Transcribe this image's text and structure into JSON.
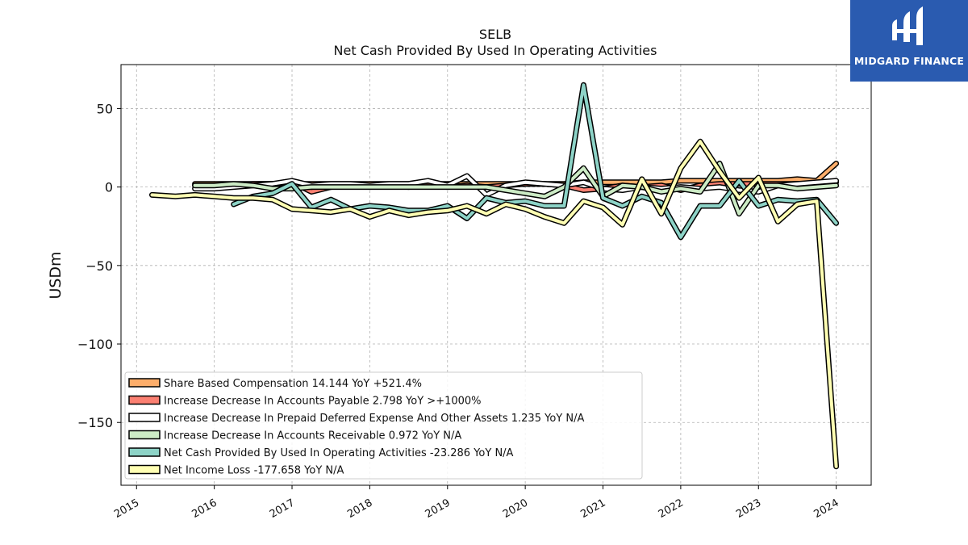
{
  "brand": {
    "name": "MIDGARD FINANCE",
    "bg_color": "#2a5bb0"
  },
  "chart_data": {
    "type": "line",
    "title": "SELB",
    "subtitle": "Net Cash Provided By Used In Operating Activities",
    "xlabel": "",
    "ylabel": "USDm",
    "x_tick_labels": [
      "2015",
      "2016",
      "2017",
      "2018",
      "2019",
      "2020",
      "2021",
      "2022",
      "2023",
      "2024"
    ],
    "y_ticks": [
      50,
      0,
      -50,
      -100,
      -150
    ],
    "y_tick_labels": [
      "50",
      "0",
      "−50",
      "−100",
      "−150"
    ],
    "xlim": [
      2014.8,
      2024.45
    ],
    "ylim": [
      -190,
      78
    ],
    "grid": true,
    "legend_position": "lower-left",
    "series": [
      {
        "name": "Share Based Compensation",
        "legend": "Share Based Compensation  14.144 YoY +521.4%",
        "color": "#fdae6b",
        "x": [
          2015.75,
          2016,
          2016.25,
          2016.5,
          2016.75,
          2017,
          2017.25,
          2017.5,
          2017.75,
          2018,
          2018.25,
          2018.5,
          2018.75,
          2019,
          2019.25,
          2019.5,
          2019.75,
          2020,
          2020.25,
          2020.5,
          2020.75,
          2021,
          2021.25,
          2021.5,
          2021.75,
          2022,
          2022.25,
          2022.5,
          2022.75,
          2023,
          2023.25,
          2023.5,
          2023.75,
          2024
        ],
        "values": [
          2,
          2,
          2,
          2,
          2,
          2,
          2,
          2,
          2,
          2,
          2,
          2,
          2,
          2,
          2,
          2,
          2,
          2,
          2,
          2,
          3,
          3,
          3,
          3,
          3,
          4,
          4,
          4,
          4,
          4,
          4,
          5,
          4,
          15
        ]
      },
      {
        "name": "Increase Decrease In Accounts Payable",
        "legend": "Increase Decrease In Accounts Payable  2.798 YoY >+1000%",
        "color": "#fb8072",
        "x": [
          2015.75,
          2016,
          2016.25,
          2016.5,
          2016.75,
          2017,
          2017.25,
          2017.5,
          2017.75,
          2018,
          2018.25,
          2018.5,
          2018.75,
          2019,
          2019.25,
          2019.5,
          2019.75,
          2020,
          2020.25,
          2020.5,
          2020.75,
          2021,
          2021.25,
          2021.5,
          2021.75,
          2022,
          2022.25,
          2022.5,
          2022.75,
          2023,
          2023.25,
          2023.5,
          2023.75,
          2024
        ],
        "values": [
          1,
          1,
          1,
          2,
          2,
          3,
          -3,
          0,
          1,
          0,
          1,
          0,
          1,
          0,
          1,
          0,
          1,
          2,
          2,
          1,
          -2,
          -1,
          1,
          0,
          1,
          -2,
          1,
          2,
          2,
          2,
          2,
          2,
          2,
          3
        ]
      },
      {
        "name": "Increase Decrease In Prepaid Deferred Expense And Other Assets",
        "legend": "Increase Decrease In Prepaid Deferred Expense And Other Assets  1.235 YoY N/A",
        "color": "#ffffff",
        "x": [
          2015.75,
          2016,
          2016.25,
          2016.5,
          2016.75,
          2017,
          2017.25,
          2017.5,
          2017.75,
          2018,
          2018.25,
          2018.5,
          2018.75,
          2019,
          2019.25,
          2019.5,
          2019.75,
          2020,
          2020.25,
          2020.5,
          2020.75,
          2021,
          2021.25,
          2021.5,
          2021.75,
          2022,
          2022.25,
          2022.5,
          2022.75,
          2023,
          2023.25,
          2023.5,
          2023.75,
          2024
        ],
        "values": [
          -1,
          -1,
          0,
          1,
          2,
          4,
          1,
          2,
          2,
          1,
          2,
          2,
          4,
          1,
          7,
          -5,
          1,
          3,
          2,
          1,
          3,
          -1,
          -2,
          0,
          -1,
          0,
          -1,
          0,
          -2,
          -3,
          1,
          2,
          3,
          4
        ]
      },
      {
        "name": "Increase Decrease In Accounts Receivable",
        "legend": "Increase Decrease In Accounts Receivable  0.972 YoY N/A",
        "color": "#ccebc5",
        "x": [
          2015.75,
          2016,
          2016.25,
          2016.5,
          2016.75,
          2017,
          2017.25,
          2017.5,
          2017.75,
          2018,
          2018.25,
          2018.5,
          2018.75,
          2019,
          2019.25,
          2019.5,
          2019.75,
          2020,
          2020.25,
          2020.5,
          2020.75,
          2021,
          2021.25,
          2021.5,
          2021.75,
          2022,
          2022.25,
          2022.5,
          2022.75,
          2023,
          2023.25,
          2023.5,
          2023.75,
          2024
        ],
        "values": [
          1,
          1,
          2,
          1,
          -1,
          -1,
          0,
          0,
          0,
          0,
          0,
          0,
          0,
          0,
          0,
          0,
          -2,
          -4,
          -6,
          0,
          12,
          -6,
          1,
          0,
          -3,
          -1,
          -3,
          15,
          -17,
          1,
          1,
          -1,
          0,
          1
        ]
      },
      {
        "name": "Net Cash Provided By Used In Operating Activities",
        "legend": "Net Cash Provided By Used In Operating Activities  -23.286 YoY N/A",
        "color": "#8dd3c7",
        "x": [
          2016.25,
          2016.5,
          2016.75,
          2017,
          2017.25,
          2017.5,
          2017.75,
          2018,
          2018.25,
          2018.5,
          2018.75,
          2019,
          2019.25,
          2019.5,
          2019.75,
          2020,
          2020.25,
          2020.5,
          2020.75,
          2021,
          2021.25,
          2021.5,
          2021.75,
          2022,
          2022.25,
          2022.5,
          2022.75,
          2023,
          2023.25,
          2023.5,
          2023.75,
          2024
        ],
        "values": [
          -11,
          -6,
          -4,
          2,
          -13,
          -8,
          -14,
          -12,
          -13,
          -15,
          -15,
          -12,
          -20,
          -7,
          -10,
          -9,
          -12,
          -12,
          65,
          -7,
          -12,
          -6,
          -10,
          -32,
          -12,
          -12,
          4,
          -12,
          -8,
          -9,
          -8,
          -23
        ]
      },
      {
        "name": "Net Income Loss",
        "legend": "Net Income Loss  -177.658 YoY N/A",
        "color": "#ffffb3",
        "x": [
          2015.2,
          2015.5,
          2015.75,
          2016,
          2016.25,
          2016.5,
          2016.75,
          2017,
          2017.25,
          2017.5,
          2017.75,
          2018,
          2018.25,
          2018.5,
          2018.75,
          2019,
          2019.25,
          2019.5,
          2019.75,
          2020,
          2020.25,
          2020.5,
          2020.75,
          2021,
          2021.25,
          2021.5,
          2021.75,
          2022,
          2022.25,
          2022.5,
          2022.75,
          2023,
          2023.25,
          2023.5,
          2023.75,
          2024
        ],
        "values": [
          -5,
          -6,
          -5,
          -6,
          -7,
          -7,
          -8,
          -14,
          -15,
          -16,
          -14,
          -19,
          -15,
          -18,
          -16,
          -15,
          -12,
          -17,
          -11,
          -14,
          -19,
          -23,
          -9,
          -13,
          -24,
          5,
          -17,
          12,
          29,
          10,
          -7,
          6,
          -22,
          -11,
          -9,
          -178
        ]
      }
    ]
  }
}
